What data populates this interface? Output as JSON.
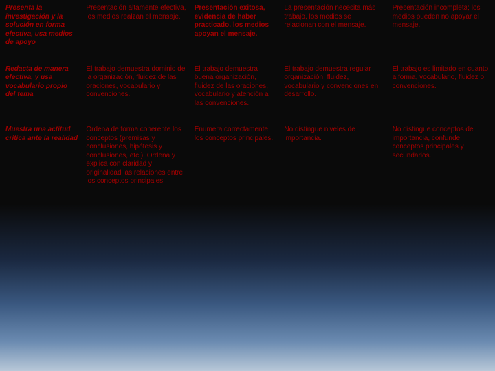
{
  "rows": [
    {
      "criterion": "Presenta la investigación y la solución en forma efectiva, usa medios de apoyo",
      "c2": "Presentación altamente efectiva, los medios realzan el mensaje.",
      "c3": "Presentación exitosa, evidencia de haber practicado, los medios apoyan el mensaje.",
      "c3_small": true,
      "c4": "La presentación necesita más trabajo, los medios se relacionan con el mensaje.",
      "c5": "Presentación incompleta; los medios pueden no apoyar el mensaje."
    },
    {
      "criterion": "Redacta de manera efectiva, y usa vocabulario propio del tema",
      "c2": "El trabajo demuestra dominio de la organización, fluidez de las oraciones, vocabulario y convenciones.",
      "c3": "El trabajo demuestra buena organización, fluidez de las oraciones, vocabulario y atención a las convenciones.",
      "c4": "El trabajo demuestra regular organización, fluidez, vocabulario y convenciones en desarrollo.",
      "c5": "El trabajo es limitado en cuanto a forma, vocabulario, fluidez o convenciones."
    },
    {
      "criterion": "Muestra una actitud crítica ante la realidad",
      "c2": "Ordena de forma coherente los conceptos (premisas y conclusiones, hipótesis y conclusiones, etc.). Ordena y explica con claridad y originalidad las relaciones entre los conceptos principales.",
      "c3": "Enumera correctamente los conceptos principales.",
      "c4": "No distingue niveles de importancia.",
      "c5": "No distingue conceptos de importancia, confunde conceptos principales y secundarios."
    }
  ]
}
